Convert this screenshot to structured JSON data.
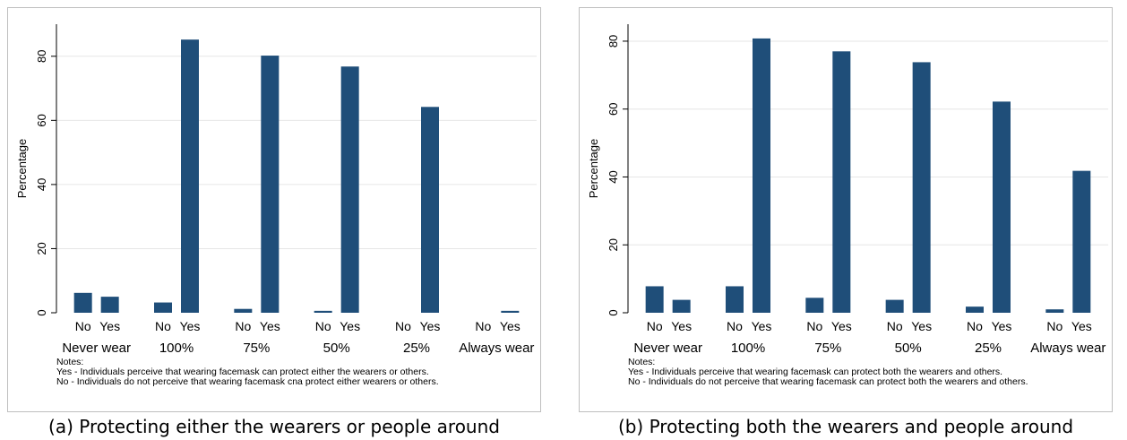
{
  "colors": {
    "bar": "#1f4e79",
    "grid": "#e6e6e6",
    "axis": "#000000"
  },
  "chart_data": [
    {
      "type": "bar",
      "groups": [
        "Never wear",
        "100%",
        "75%",
        "50%",
        "25%",
        "Always wear"
      ],
      "subcategories": [
        "No",
        "Yes"
      ],
      "values": [
        [
          6.2,
          5.0
        ],
        [
          3.2,
          85.2
        ],
        [
          1.2,
          80.2
        ],
        [
          0.6,
          76.8
        ],
        [
          0,
          64.2
        ],
        [
          0,
          0.6
        ]
      ],
      "ylabel": "Percentage",
      "ylim": [
        0,
        90
      ],
      "yticks": [
        0,
        20,
        40,
        60,
        80
      ],
      "grid": true,
      "notes": [
        "Notes:",
        "Yes - Individuals perceive that wearing facemask can protect either the wearers or others.",
        "No - Individuals do not perceive that wearing facemask cna protect either wearers or others."
      ],
      "caption": "(a)  Protecting either the wearers or people around"
    },
    {
      "type": "bar",
      "groups": [
        "Never wear",
        "100%",
        "75%",
        "50%",
        "25%",
        "Always wear"
      ],
      "subcategories": [
        "No",
        "Yes"
      ],
      "values": [
        [
          7.8,
          3.8
        ],
        [
          7.8,
          80.8
        ],
        [
          4.4,
          77.0
        ],
        [
          3.8,
          73.8
        ],
        [
          1.8,
          62.2
        ],
        [
          1.0,
          41.8
        ]
      ],
      "ylabel": "Percentage",
      "ylim": [
        0,
        85
      ],
      "yticks": [
        0,
        20,
        40,
        60,
        80
      ],
      "grid": true,
      "notes": [
        "Notes:",
        "Yes - Individuals perceive that wearing facemask can protect both the wearers and others.",
        "No - Individuals do not perceive that wearing facemask can protect both the wearers and others."
      ],
      "caption": "(b) Protecting both the wearers and people around"
    }
  ]
}
